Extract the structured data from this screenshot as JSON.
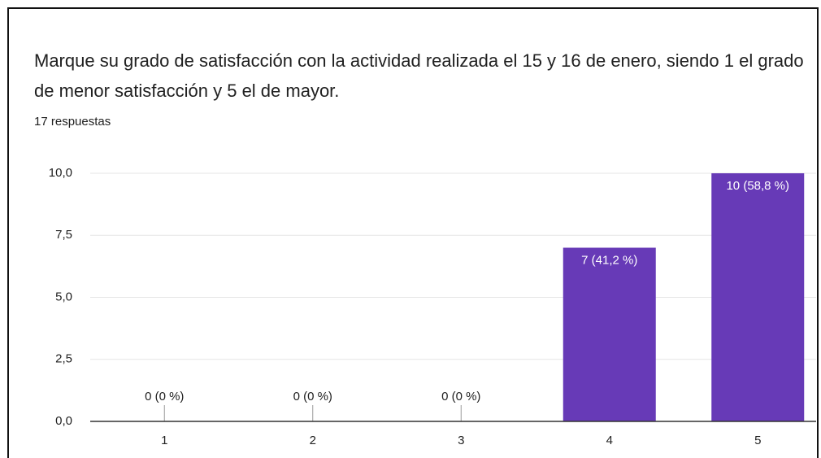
{
  "chart_data": {
    "type": "bar",
    "title": [
      "Marque su  grado de satisfacción con la actividad realizada el 15 y 16 de enero, siendo 1 el grado",
      "de menor satisfacción y 5 el de mayor."
    ],
    "subtitle": "17 respuestas",
    "categories": [
      "1",
      "2",
      "3",
      "4",
      "5"
    ],
    "values": [
      0,
      0,
      0,
      7,
      10
    ],
    "value_labels": [
      "0 (0 %)",
      "0 (0 %)",
      "0 (0 %)",
      "7 (41,2 %)",
      "10 (58,8 %)"
    ],
    "color": "#673ab7",
    "ylim": [
      0,
      10
    ],
    "yticks": [
      {
        "value": 0,
        "label": "0,0"
      },
      {
        "value": 2.5,
        "label": "2,5"
      },
      {
        "value": 5,
        "label": "5,0"
      },
      {
        "value": 7.5,
        "label": "7,5"
      },
      {
        "value": 10,
        "label": "10,0"
      }
    ],
    "grid": true
  }
}
